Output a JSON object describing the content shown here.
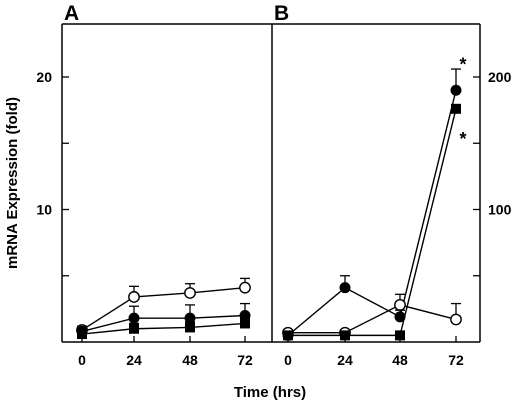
{
  "chart_data": [
    {
      "panel": "A",
      "type": "line",
      "xlabel": "Time (hrs)",
      "ylabel": "mRNA Expression (fold)",
      "x": [
        0,
        24,
        48,
        72
      ],
      "xticks": [
        "0",
        "24",
        "48",
        "72"
      ],
      "yticks": [
        "10",
        "20"
      ],
      "ylim": [
        0,
        24
      ],
      "series": [
        {
          "marker": "open-circle",
          "values": [
            0.9,
            3.4,
            3.7,
            4.1
          ],
          "errors": [
            0.3,
            0.8,
            0.7,
            0.7
          ]
        },
        {
          "marker": "filled-circle",
          "values": [
            0.8,
            1.8,
            1.8,
            2.0
          ],
          "errors": [
            0.2,
            0.9,
            1.0,
            0.9
          ]
        },
        {
          "marker": "filled-square",
          "values": [
            0.6,
            1.0,
            1.1,
            1.4
          ],
          "errors": [
            0.2,
            0.4,
            0.4,
            0.4
          ]
        }
      ]
    },
    {
      "panel": "B",
      "type": "line",
      "xlabel": "Time (hrs)",
      "x": [
        0,
        24,
        48,
        72
      ],
      "xticks": [
        "0",
        "24",
        "48",
        "72"
      ],
      "yticks": [
        "100",
        "200"
      ],
      "ylim": [
        0,
        240
      ],
      "annotations": [
        "*",
        "*"
      ],
      "series": [
        {
          "marker": "filled-circle",
          "values": [
            5,
            41,
            19,
            190
          ],
          "errors": [
            0,
            9,
            5,
            16
          ]
        },
        {
          "marker": "open-circle",
          "values": [
            7,
            7,
            28,
            17
          ],
          "errors": [
            2,
            2,
            8,
            12
          ]
        },
        {
          "marker": "filled-square",
          "values": [
            5,
            5,
            5,
            176
          ],
          "errors": [
            0,
            0,
            0,
            0
          ]
        }
      ]
    }
  ]
}
